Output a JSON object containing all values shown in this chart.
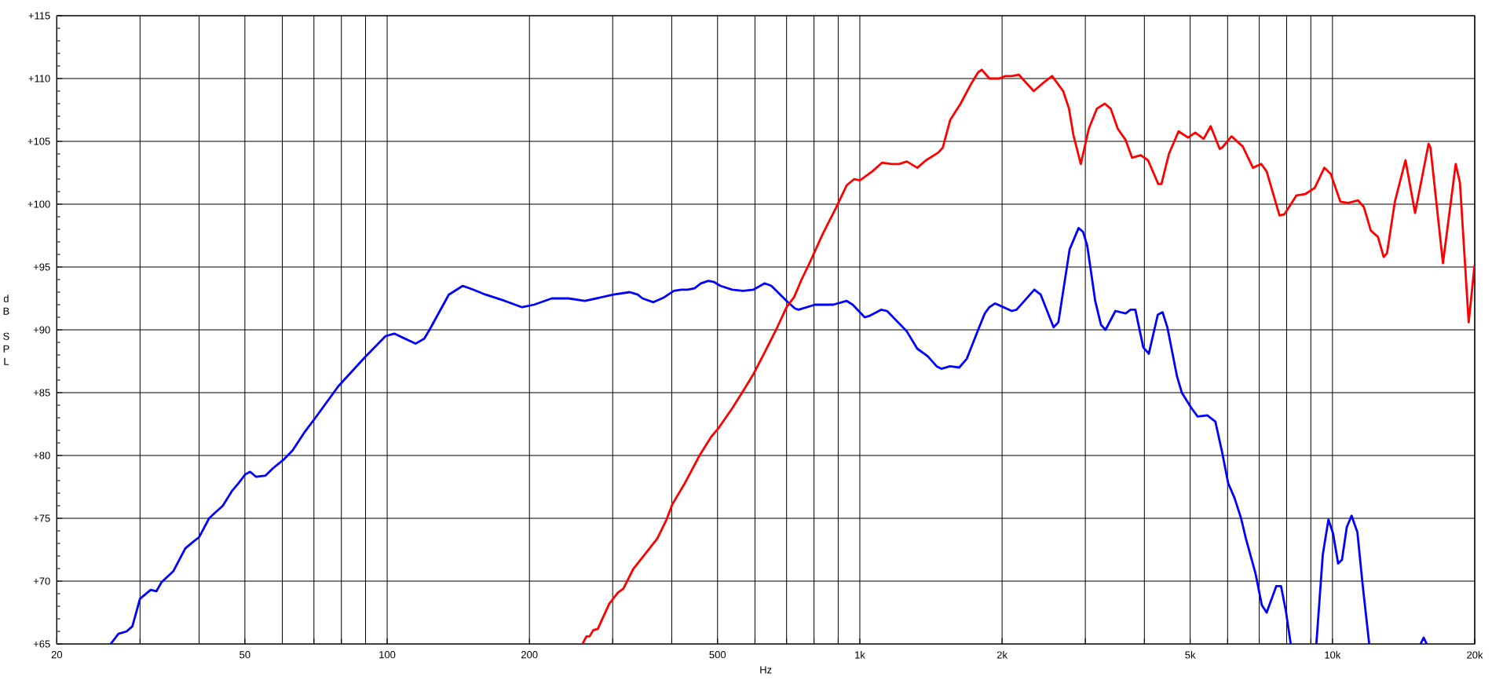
{
  "chart_data": {
    "type": "line",
    "xlabel": "Hz",
    "ylabel": "dB SPL",
    "log": "x",
    "grid": true,
    "line_style": "solid",
    "xlim": [
      20,
      20000
    ],
    "ylim": [
      65,
      115
    ],
    "xticks": [
      20,
      {
        "value": 30,
        "label": null
      },
      {
        "value": 40,
        "label": null
      },
      50,
      {
        "value": 60,
        "label": null
      },
      {
        "value": 70,
        "label": null
      },
      {
        "value": 80,
        "label": null
      },
      {
        "value": 90,
        "label": null
      },
      100,
      200,
      {
        "value": 300,
        "label": null
      },
      {
        "value": 400,
        "label": null
      },
      500,
      {
        "value": 600,
        "label": null
      },
      {
        "value": 700,
        "label": null
      },
      {
        "value": 800,
        "label": null
      },
      {
        "value": 900,
        "label": null
      },
      {
        "value": 1000,
        "label": "1k"
      },
      {
        "value": 2000,
        "label": "2k"
      },
      {
        "value": 3000,
        "label": null
      },
      {
        "value": 4000,
        "label": null
      },
      {
        "value": 5000,
        "label": "5k"
      },
      {
        "value": 6000,
        "label": null
      },
      {
        "value": 7000,
        "label": null
      },
      {
        "value": 8000,
        "label": null
      },
      {
        "value": 9000,
        "label": null
      },
      {
        "value": 10000,
        "label": "10k"
      },
      {
        "value": 20000,
        "label": "20k"
      }
    ],
    "yticks": [
      {
        "value": 65,
        "label": "+65"
      },
      {
        "value": 70,
        "label": "+70"
      },
      {
        "value": 75,
        "label": "+75"
      },
      {
        "value": 80,
        "label": "+80"
      },
      {
        "value": 85,
        "label": "+85"
      },
      {
        "value": 90,
        "label": "+90"
      },
      {
        "value": 95,
        "label": "+95"
      },
      {
        "value": 100,
        "label": "+100"
      },
      {
        "value": 105,
        "label": "+105"
      },
      {
        "value": 110,
        "label": "+110"
      },
      {
        "value": 115,
        "label": "+115"
      }
    ],
    "series": [
      {
        "color": "#0000ff",
        "x": [
          26,
          27,
          28.1,
          28.9,
          30,
          31.6,
          32.5,
          33.3,
          35.3,
          37.4,
          38.8,
          40,
          42,
          43.4,
          44.9,
          47,
          48.5,
          50.1,
          51.3,
          52.8,
          55.3,
          57.4,
          60.5,
          63.1,
          67,
          70.5,
          78.8,
          89.6,
          99.2,
          103.5,
          114.8,
          119.8,
          122.9,
          135,
          144.5,
          152,
          161.5,
          177.5,
          193,
          204.5,
          223,
          242,
          262,
          301,
          326,
          339,
          347,
          366,
          386,
          404,
          419,
          432,
          447,
          461,
          478,
          492,
          507,
          537,
          566,
          596,
          629,
          650,
          700,
          729,
          742,
          804,
          878,
          938,
          966,
          1024,
          1046,
          1109,
          1142,
          1256,
          1323,
          1392,
          1454,
          1487,
          1553,
          1623,
          1684,
          1780,
          1838,
          1880,
          1933,
          2097,
          2146,
          2340,
          2414,
          2570,
          2631,
          2779,
          2903,
          2967,
          3028,
          3148,
          3238,
          3310,
          3474,
          3652,
          3739,
          3828,
          3979,
          4087,
          4270,
          4371,
          4474,
          4689,
          4800,
          5025,
          5185,
          5436,
          5652,
          5831,
          6017,
          6208,
          6407,
          6558,
          6875,
          7088,
          7258,
          7604,
          7785,
          7972,
          8160,
          8700,
          9245,
          9539,
          9806,
          10028,
          10280,
          10475,
          10722,
          10975,
          11290,
          11592,
          11960,
          13500,
          15360,
          15590,
          15830
        ],
        "values": [
          65.0,
          65.8,
          66.0,
          66.4,
          68.6,
          69.3,
          69.2,
          69.9,
          70.8,
          72.6,
          73.1,
          73.5,
          75.0,
          75.5,
          76.0,
          77.2,
          77.8,
          78.5,
          78.7,
          78.3,
          78.4,
          79.0,
          79.7,
          80.4,
          81.9,
          83.0,
          85.5,
          87.8,
          89.5,
          89.7,
          88.9,
          89.3,
          90.0,
          92.8,
          93.5,
          93.2,
          92.8,
          92.3,
          91.8,
          92.0,
          92.5,
          92.5,
          92.3,
          92.8,
          93.0,
          92.8,
          92.5,
          92.2,
          92.6,
          93.1,
          93.2,
          93.2,
          93.3,
          93.7,
          93.9,
          93.8,
          93.5,
          93.2,
          93.1,
          93.2,
          93.7,
          93.5,
          92.3,
          91.7,
          91.6,
          92.0,
          92.0,
          92.3,
          92.0,
          91.0,
          91.1,
          91.6,
          91.5,
          89.9,
          88.5,
          87.9,
          87.1,
          86.9,
          87.1,
          87.0,
          87.7,
          90.0,
          91.3,
          91.8,
          92.1,
          91.5,
          91.6,
          93.2,
          92.8,
          90.2,
          90.6,
          96.4,
          98.1,
          97.8,
          96.7,
          92.3,
          90.4,
          90.0,
          91.5,
          91.3,
          91.6,
          91.6,
          88.6,
          88.1,
          91.2,
          91.4,
          90.2,
          86.3,
          85.0,
          83.8,
          83.1,
          83.2,
          82.7,
          80.4,
          77.8,
          76.6,
          75.0,
          73.4,
          70.6,
          68.1,
          67.5,
          69.6,
          69.6,
          67.6,
          65.0,
          null,
          65.0,
          72.1,
          74.9,
          73.8,
          71.4,
          71.7,
          74.3,
          75.2,
          73.9,
          69.6,
          65.0,
          null,
          65.0,
          65.5,
          65.0
        ]
      },
      {
        "color": "#ff0000",
        "x": [
          259,
          264,
          268,
          273,
          279,
          295,
          308,
          316,
          332,
          347,
          373,
          390,
          401,
          425,
          458,
          485,
          503,
          538,
          570,
          596,
          631,
          665,
          700,
          726,
          753,
          787,
          834,
          890,
          938,
          973,
          1001,
          1062,
          1114,
          1168,
          1211,
          1257,
          1323,
          1381,
          1465,
          1498,
          1553,
          1634,
          1721,
          1780,
          1812,
          1880,
          1972,
          2033,
          2097,
          2171,
          2333,
          2452,
          2551,
          2693,
          2771,
          2831,
          2935,
          3051,
          3173,
          3299,
          3395,
          3514,
          3652,
          3767,
          3930,
          4071,
          4281,
          4346,
          4508,
          4724,
          4952,
          5124,
          5339,
          5525,
          5772,
          5842,
          6116,
          6457,
          6788,
          7069,
          7258,
          7728,
          7916,
          8392,
          8752,
          9175,
          9611,
          9918,
          10392,
          10800,
          11326,
          11646,
          12054,
          12479,
          12832,
          13044,
          13553,
          14274,
          14955,
          15970,
          16120,
          17131,
          18230,
          18610,
          19420,
          19980
        ],
        "values": [
          65.0,
          65.6,
          65.6,
          66.1,
          66.2,
          68.2,
          69.1,
          69.4,
          71.0,
          71.9,
          73.4,
          74.9,
          76.1,
          77.7,
          80.0,
          81.5,
          82.2,
          83.8,
          85.3,
          86.5,
          88.3,
          90.0,
          91.8,
          92.6,
          94.0,
          95.5,
          97.6,
          99.7,
          101.5,
          102.0,
          101.9,
          102.6,
          103.3,
          103.2,
          103.2,
          103.4,
          102.9,
          103.5,
          104.1,
          104.5,
          106.7,
          108.0,
          109.6,
          110.5,
          110.7,
          110.0,
          110.0,
          110.2,
          110.2,
          110.3,
          109.0,
          109.7,
          110.2,
          109.0,
          107.6,
          105.5,
          103.2,
          106.0,
          107.6,
          108.0,
          107.6,
          106.0,
          105.1,
          103.7,
          103.9,
          103.5,
          101.6,
          101.6,
          104.0,
          105.8,
          105.3,
          105.7,
          105.2,
          106.2,
          104.4,
          104.5,
          105.4,
          104.6,
          102.9,
          103.2,
          102.6,
          99.1,
          99.2,
          100.7,
          100.8,
          101.3,
          102.9,
          102.4,
          100.2,
          100.1,
          100.3,
          99.8,
          97.9,
          97.4,
          95.8,
          96.1,
          100.2,
          103.5,
          99.3,
          104.8,
          104.5,
          95.3,
          103.2,
          101.7,
          90.6,
          95.1
        ]
      }
    ]
  }
}
